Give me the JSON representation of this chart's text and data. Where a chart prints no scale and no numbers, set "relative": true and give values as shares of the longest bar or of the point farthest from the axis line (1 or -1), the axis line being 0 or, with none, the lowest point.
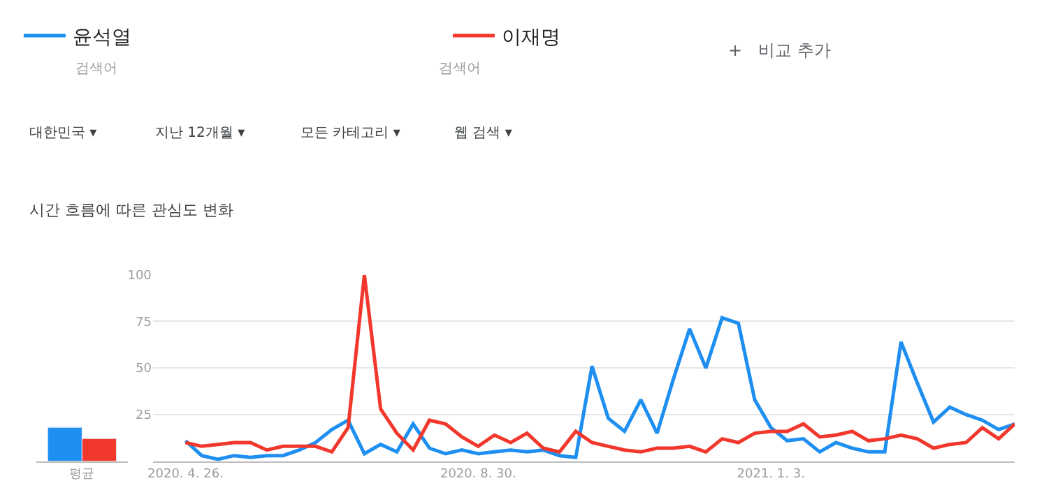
{
  "chart_data": [
    {
      "type": "line",
      "title": "시간 흐름에 따른 관심도 변화",
      "x": [
        "2020-04-26",
        "2020-05-03",
        "2020-05-10",
        "2020-05-17",
        "2020-05-24",
        "2020-05-31",
        "2020-06-07",
        "2020-06-14",
        "2020-06-21",
        "2020-06-28",
        "2020-07-05",
        "2020-07-12",
        "2020-07-19",
        "2020-07-26",
        "2020-08-02",
        "2020-08-09",
        "2020-08-16",
        "2020-08-23",
        "2020-08-30",
        "2020-09-06",
        "2020-09-13",
        "2020-09-20",
        "2020-09-27",
        "2020-10-04",
        "2020-10-11",
        "2020-10-18",
        "2020-10-25",
        "2020-11-01",
        "2020-11-08",
        "2020-11-15",
        "2020-11-22",
        "2020-11-29",
        "2020-12-06",
        "2020-12-13",
        "2020-12-20",
        "2020-12-27",
        "2021-01-03",
        "2021-01-10",
        "2021-01-17",
        "2021-01-24",
        "2021-01-31",
        "2021-02-07",
        "2021-02-14",
        "2021-02-21",
        "2021-02-28",
        "2021-03-07",
        "2021-03-14",
        "2021-03-21",
        "2021-03-28",
        "2021-04-04",
        "2021-04-11",
        "2021-04-18"
      ],
      "series": [
        {
          "name": "윤석열",
          "color": "#1e8ff0",
          "values": [
            11,
            3,
            1,
            3,
            2,
            3,
            3,
            6,
            10,
            17,
            22,
            4,
            9,
            5,
            20,
            7,
            4,
            6,
            4,
            5,
            6,
            5,
            6,
            3,
            2,
            51,
            23,
            16,
            33,
            15,
            44,
            71,
            50,
            77,
            74,
            33,
            18,
            11,
            12,
            5,
            10,
            7,
            5,
            5,
            64,
            42,
            21,
            29,
            25,
            22,
            17,
            20
          ]
        },
        {
          "name": "이재명",
          "color": "#f2382d",
          "values": [
            10,
            8,
            9,
            10,
            10,
            6,
            8,
            8,
            8,
            5,
            18,
            100,
            28,
            15,
            6,
            22,
            20,
            13,
            8,
            14,
            10,
            15,
            7,
            5,
            16,
            10,
            8,
            6,
            5,
            7,
            7,
            8,
            5,
            12,
            10,
            15,
            16,
            16,
            20,
            13,
            14,
            16,
            11,
            12,
            14,
            12,
            7,
            9,
            10,
            18,
            12,
            20
          ]
        }
      ],
      "xlim": [
        "2020-04-12",
        "2021-04-18"
      ],
      "xticks": [
        {
          "value": "2020-04-26",
          "label": "2020. 4. 26."
        },
        {
          "value": "2020-08-30",
          "label": "2020. 8. 30."
        },
        {
          "value": "2021-01-03",
          "label": "2021. 1. 3."
        }
      ],
      "ylim": [
        0,
        100
      ],
      "yticks": [
        25,
        50,
        75,
        100
      ],
      "grid": "y",
      "legend": "top left",
      "marker": "none",
      "line_style": "solid",
      "annotations": [
        "검색어",
        "검색어",
        "+   비교 추가",
        "대한민국 ▾",
        "지난 12개월 ▾",
        "모든 카테고리 ▾",
        "웹 검색 ▾"
      ]
    },
    {
      "type": "bar",
      "relative": true,
      "categories": [
        "평균"
      ],
      "series": [
        {
          "color": "#1e8ff0",
          "values": [
            1
          ]
        },
        {
          "color": "#f2382d",
          "values": [
            0.67
          ]
        }
      ]
    }
  ]
}
